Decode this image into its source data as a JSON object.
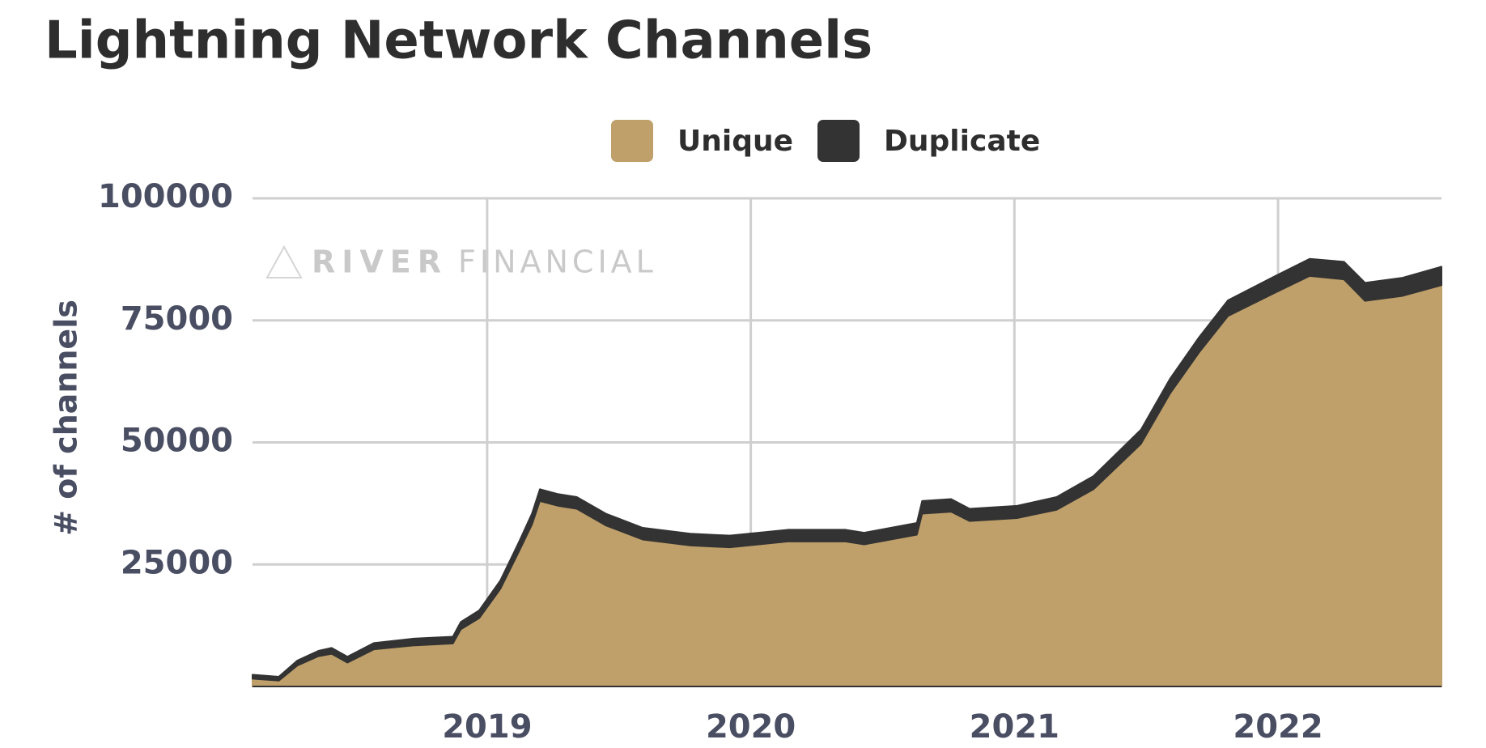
{
  "chart_data": {
    "type": "stacked-area",
    "title": "Lightning Network Channels",
    "ylabel": "# of channels",
    "watermark": {
      "brand": "RIVER",
      "suffix": "FINANCIAL"
    },
    "legend": "top",
    "grid": true,
    "xlim": [
      2018.11,
      2022.62
    ],
    "xticks": [
      2019,
      2020,
      2021,
      2022
    ],
    "ylim": [
      0,
      100000
    ],
    "yticks": [
      25000,
      50000,
      75000,
      100000
    ],
    "x": [
      2018.11,
      2018.21,
      2018.28,
      2018.36,
      2018.41,
      2018.47,
      2018.57,
      2018.72,
      2018.87,
      2018.9,
      2018.97,
      2019.05,
      2019.12,
      2019.17,
      2019.2,
      2019.27,
      2019.34,
      2019.45,
      2019.59,
      2019.77,
      2019.92,
      2020.14,
      2020.36,
      2020.43,
      2020.63,
      2020.65,
      2020.76,
      2020.83,
      2021.01,
      2021.16,
      2021.3,
      2021.48,
      2021.59,
      2021.7,
      2021.81,
      2021.99,
      2022.12,
      2022.25,
      2022.33,
      2022.47,
      2022.62
    ],
    "series": [
      {
        "name": "Unique",
        "color": "#bfa06b",
        "values": [
          1600,
          1200,
          4300,
          6200,
          6700,
          4900,
          7600,
          8400,
          8800,
          11700,
          14000,
          20000,
          27600,
          33200,
          38000,
          37000,
          36400,
          33000,
          30100,
          28900,
          28500,
          29700,
          29700,
          29100,
          31100,
          35400,
          35800,
          33900,
          34500,
          36200,
          40400,
          49700,
          60000,
          68400,
          75900,
          80700,
          84100,
          83400,
          79000,
          80000,
          82200
        ]
      },
      {
        "name": "Duplicate",
        "color": "#333333",
        "values": [
          800,
          800,
          1000,
          1100,
          1200,
          1200,
          1300,
          1400,
          1400,
          1500,
          1600,
          1700,
          1900,
          2200,
          2400,
          2400,
          2400,
          2400,
          2400,
          2400,
          2400,
          2400,
          2400,
          2400,
          2400,
          2600,
          2600,
          2500,
          2500,
          2600,
          2700,
          2900,
          3000,
          3100,
          3200,
          3400,
          3500,
          3600,
          3700,
          3700,
          3800
        ]
      }
    ]
  }
}
